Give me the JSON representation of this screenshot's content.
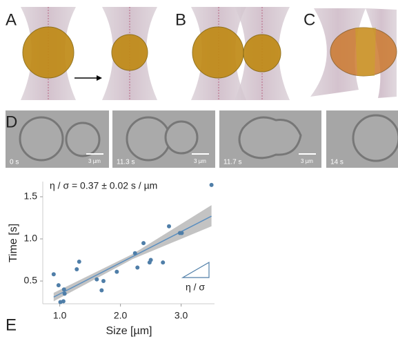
{
  "panel_labels": [
    "A",
    "B",
    "C",
    "D",
    "E"
  ],
  "frames": [
    {
      "time": "0 s",
      "scale_bar": "3 µm"
    },
    {
      "time": "11.3 s",
      "scale_bar": "3 µm"
    },
    {
      "time": "11.7 s",
      "scale_bar": "3 µm"
    },
    {
      "time": "14 s"
    }
  ],
  "chart_data": {
    "type": "scatter",
    "xlabel": "Size [µm]",
    "ylabel": "Time [s]",
    "annotation": "η / σ = 0.37 ± 0.02 s / µm",
    "slope_label": "η / σ",
    "x": [
      0.9,
      0.98,
      1.01,
      1.06,
      1.07,
      1.08,
      1.28,
      1.32,
      1.61,
      1.69,
      1.72,
      1.94,
      2.24,
      2.28,
      2.38,
      2.48,
      2.5,
      2.7,
      2.8,
      2.98,
      3.01,
      3.5
    ],
    "values": [
      0.58,
      0.45,
      0.25,
      0.26,
      0.4,
      0.35,
      0.64,
      0.73,
      0.52,
      0.39,
      0.5,
      0.61,
      0.83,
      0.66,
      0.95,
      0.72,
      0.75,
      0.72,
      1.15,
      1.07,
      1.07,
      1.64
    ],
    "color": "#4f7ea8",
    "fit": {
      "x": [
        0.9,
        3.5
      ],
      "values": [
        0.31,
        1.27
      ],
      "color": "#5b8fc0"
    },
    "band": {
      "x": [
        0.9,
        2.2,
        3.5
      ],
      "lower": [
        0.26,
        0.76,
        1.15
      ],
      "upper": [
        0.36,
        0.82,
        1.4
      ],
      "color": "#b8b8b8"
    },
    "xlim": [
      0.72,
      3.55
    ],
    "ylim": [
      0.23,
      1.68
    ],
    "xticks": [
      {
        "value": 1,
        "label": "1.0"
      },
      {
        "value": 2,
        "label": "2.0"
      },
      {
        "value": 3,
        "label": "3.0"
      }
    ],
    "yticks": [
      0.5,
      {
        "value": 1,
        "label": "1.0"
      },
      1.5
    ]
  }
}
